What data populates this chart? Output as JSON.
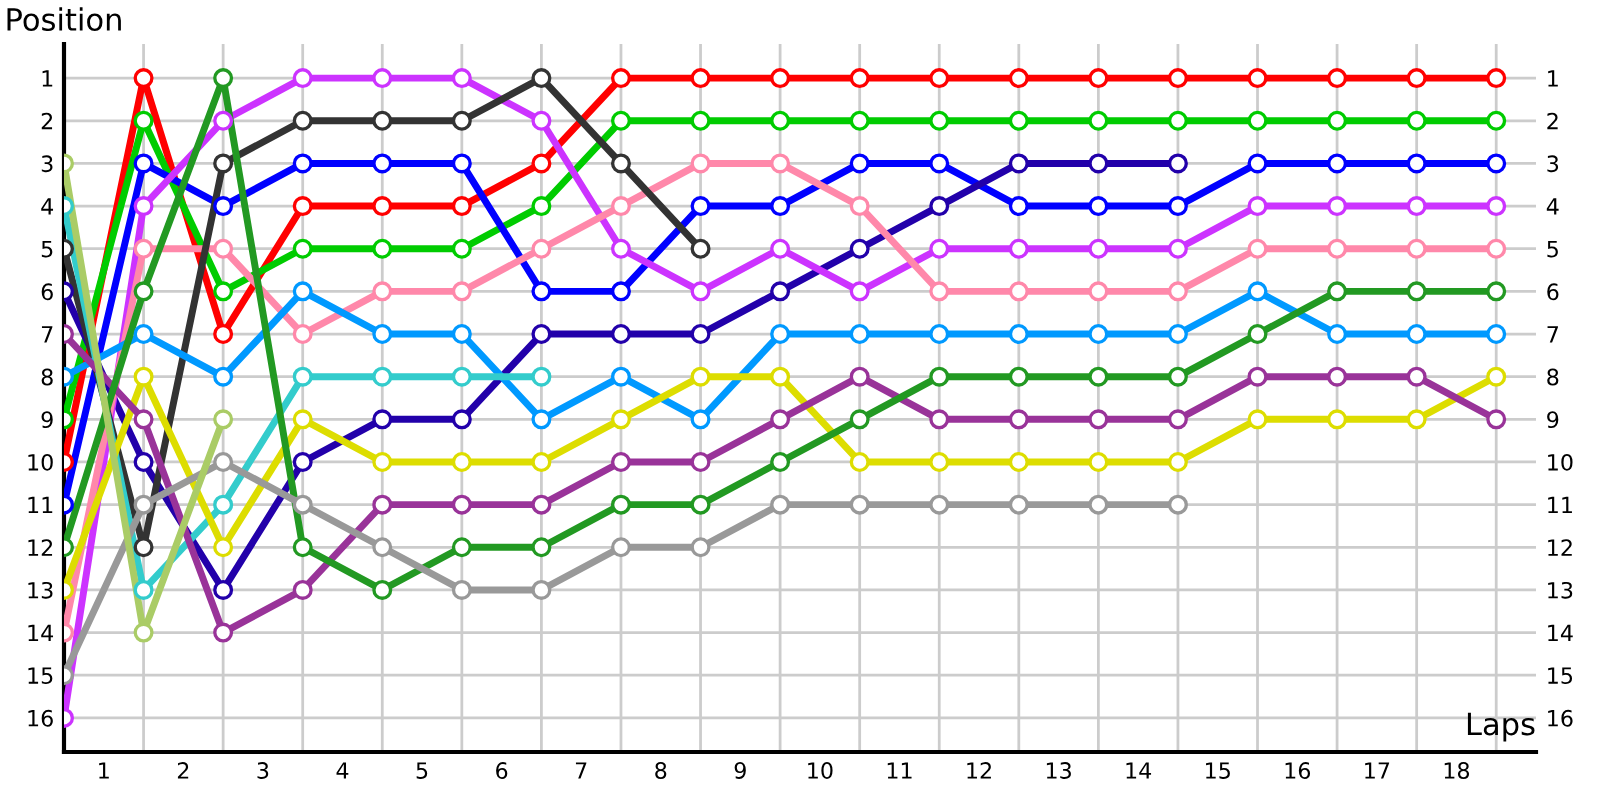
{
  "chart_data": {
    "type": "line",
    "xlabel": "Laps",
    "ylabel": "Position",
    "x": [
      0,
      1,
      2,
      3,
      4,
      5,
      6,
      7,
      8,
      9,
      10,
      11,
      12,
      13,
      14,
      15,
      16,
      17,
      18
    ],
    "series": [
      {
        "color": "#ff0000",
        "values": [
          10,
          1,
          7,
          4,
          4,
          4,
          3,
          1,
          1,
          1,
          1,
          1,
          1,
          1,
          1,
          1,
          1,
          1,
          1
        ]
      },
      {
        "color": "#00cc00",
        "values": [
          9,
          2,
          6,
          5,
          5,
          5,
          4,
          2,
          2,
          2,
          2,
          2,
          2,
          2,
          2,
          2,
          2,
          2,
          2
        ]
      },
      {
        "color": "#0000ff",
        "values": [
          11,
          3,
          4,
          3,
          3,
          3,
          6,
          6,
          4,
          4,
          3,
          3,
          4,
          4,
          4,
          3,
          3,
          3,
          3
        ]
      },
      {
        "color": "#2200aa",
        "values": [
          6,
          10,
          13,
          10,
          9,
          9,
          7,
          7,
          7,
          6,
          5,
          4,
          3,
          3,
          3,
          null,
          null,
          null,
          null
        ]
      },
      {
        "color": "#cc33ff",
        "values": [
          16,
          4,
          2,
          1,
          1,
          1,
          2,
          5,
          6,
          5,
          6,
          5,
          5,
          5,
          5,
          4,
          4,
          4,
          4
        ]
      },
      {
        "color": "#ff88aa",
        "values": [
          14,
          5,
          5,
          7,
          6,
          6,
          5,
          4,
          3,
          3,
          4,
          6,
          6,
          6,
          6,
          5,
          5,
          5,
          5
        ]
      },
      {
        "color": "#333333",
        "values": [
          5,
          12,
          3,
          2,
          2,
          2,
          1,
          3,
          5,
          null,
          null,
          null,
          null,
          null,
          null,
          null,
          null,
          null,
          null
        ]
      },
      {
        "color": "#0099ff",
        "values": [
          8,
          7,
          8,
          6,
          7,
          7,
          9,
          8,
          9,
          7,
          7,
          7,
          7,
          7,
          7,
          6,
          7,
          7,
          7
        ]
      },
      {
        "color": "#33cccc",
        "values": [
          4,
          13,
          11,
          8,
          8,
          8,
          8,
          null,
          null,
          null,
          null,
          null,
          null,
          null,
          null,
          null,
          null,
          null,
          null
        ]
      },
      {
        "color": "#dddd00",
        "values": [
          13,
          8,
          12,
          9,
          10,
          10,
          10,
          9,
          8,
          8,
          10,
          10,
          10,
          10,
          10,
          9,
          9,
          9,
          8
        ]
      },
      {
        "color": "#993399",
        "values": [
          7,
          9,
          14,
          13,
          11,
          11,
          11,
          10,
          10,
          9,
          8,
          9,
          9,
          9,
          9,
          8,
          8,
          8,
          9
        ]
      },
      {
        "color": "#229922",
        "values": [
          12,
          6,
          1,
          12,
          13,
          12,
          12,
          11,
          11,
          10,
          9,
          8,
          8,
          8,
          8,
          7,
          6,
          6,
          6
        ]
      },
      {
        "color": "#999999",
        "values": [
          15,
          11,
          10,
          11,
          12,
          13,
          13,
          12,
          12,
          11,
          11,
          11,
          11,
          11,
          11,
          null,
          null,
          null,
          null
        ]
      },
      {
        "color": "#aacc66",
        "values": [
          3,
          14,
          9,
          null,
          null,
          null,
          null,
          null,
          null,
          null,
          null,
          null,
          null,
          null,
          null,
          null,
          null,
          null,
          null
        ]
      }
    ],
    "xlim": [
      0,
      18.5
    ],
    "xticks": [
      {
        "value": 0,
        "label": null
      },
      {
        "value": 0.5,
        "label": "1"
      },
      {
        "value": 1,
        "label": null
      },
      {
        "value": 1.5,
        "label": "2"
      },
      {
        "value": 2,
        "label": null
      },
      {
        "value": 2.5,
        "label": "3"
      },
      {
        "value": 3,
        "label": null
      },
      {
        "value": 3.5,
        "label": "4"
      },
      {
        "value": 4,
        "label": null
      },
      {
        "value": 4.5,
        "label": "5"
      },
      {
        "value": 5,
        "label": null
      },
      {
        "value": 5.5,
        "label": "6"
      },
      {
        "value": 6,
        "label": null
      },
      {
        "value": 6.5,
        "label": "7"
      },
      {
        "value": 7,
        "label": null
      },
      {
        "value": 7.5,
        "label": "8"
      },
      {
        "value": 8,
        "label": null
      },
      {
        "value": 8.5,
        "label": "9"
      },
      {
        "value": 9,
        "label": null
      },
      {
        "value": 9.5,
        "label": "10"
      },
      {
        "value": 10,
        "label": null
      },
      {
        "value": 10.5,
        "label": "11"
      },
      {
        "value": 11,
        "label": null
      },
      {
        "value": 11.5,
        "label": "12"
      },
      {
        "value": 12,
        "label": null
      },
      {
        "value": 12.5,
        "label": "13"
      },
      {
        "value": 13,
        "label": null
      },
      {
        "value": 13.5,
        "label": "14"
      },
      {
        "value": 14,
        "label": null
      },
      {
        "value": 14.5,
        "label": "15"
      },
      {
        "value": 15,
        "label": null
      },
      {
        "value": 15.5,
        "label": "16"
      },
      {
        "value": 16,
        "label": null
      },
      {
        "value": 16.5,
        "label": "17"
      },
      {
        "value": 17,
        "label": null
      },
      {
        "value": 17.5,
        "label": "18"
      },
      {
        "value": 18,
        "label": null
      }
    ],
    "ylim": [
      16.8,
      0.2
    ],
    "yticks": [
      1,
      2,
      3,
      4,
      5,
      6,
      7,
      8,
      9,
      10,
      11,
      12,
      13,
      14,
      15,
      16
    ],
    "y2lim": [
      16.8,
      0.2
    ],
    "y2ticks": [
      1,
      2,
      3,
      4,
      5,
      6,
      7,
      8,
      9,
      10,
      11,
      12,
      13,
      14,
      15,
      16
    ],
    "grid": true,
    "marker": "circle",
    "line_style": "solid"
  }
}
